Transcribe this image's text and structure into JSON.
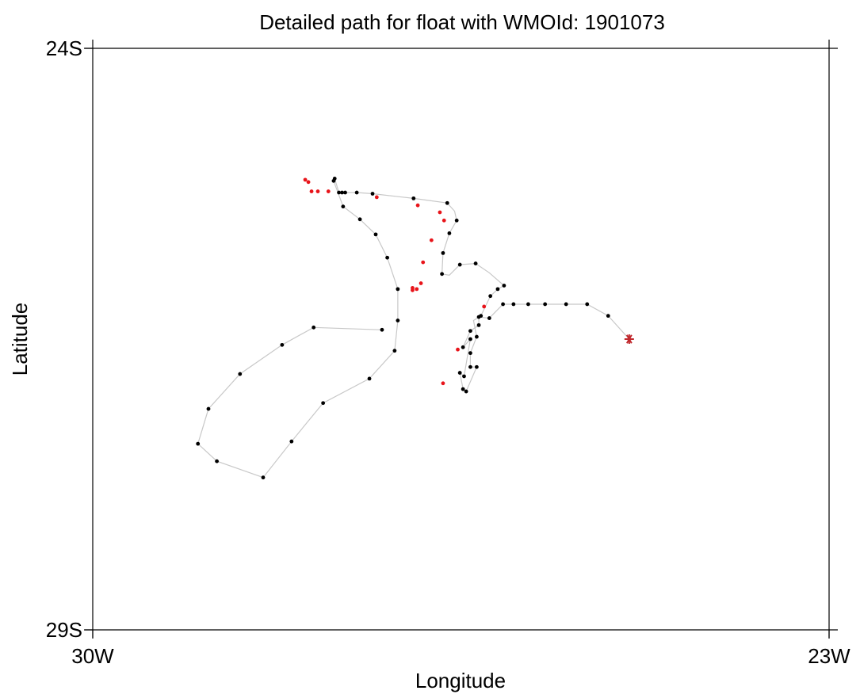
{
  "chart_data": {
    "type": "scatter",
    "title": "Detailed path for float with WMOId: 1901073",
    "xlabel": "Longitude",
    "ylabel": "Latitude",
    "xlim": [
      -30,
      -23
    ],
    "ylim": [
      -29,
      -24
    ],
    "x_ticks": [
      {
        "value": -30,
        "label": "30W"
      },
      {
        "value": -23,
        "label": "23W"
      }
    ],
    "y_ticks": [
      {
        "value": -24,
        "label": "24S"
      },
      {
        "value": -29,
        "label": "29S"
      }
    ],
    "grid": false,
    "legend": "none",
    "colors": {
      "path_line": "#c8c8c8",
      "black_point": "#000000",
      "red_point": "#e8141a",
      "latest_marker": "#c0282d"
    },
    "series": [
      {
        "type": "line",
        "points": [
          [
            -24.9,
            -26.5
          ],
          [
            -25.1,
            -26.3
          ],
          [
            -25.3,
            -26.2
          ],
          [
            -25.5,
            -26.2
          ],
          [
            -25.7,
            -26.2
          ],
          [
            -25.86,
            -26.2
          ],
          [
            -26.0,
            -26.2
          ],
          [
            -26.1,
            -26.2
          ],
          [
            -26.23,
            -26.32
          ],
          [
            -26.33,
            -26.31
          ],
          [
            -26.33,
            -26.38
          ],
          [
            -26.41,
            -26.43
          ],
          [
            -26.48,
            -26.57
          ],
          [
            -26.41,
            -26.5
          ],
          [
            -26.47,
            -26.82
          ],
          [
            -26.51,
            -26.79
          ],
          [
            -26.48,
            -26.93
          ],
          [
            -26.45,
            -26.95
          ],
          [
            -26.35,
            -26.74
          ],
          [
            -26.41,
            -26.74
          ],
          [
            -26.41,
            -26.62
          ],
          [
            -26.35,
            -26.48
          ],
          [
            -26.38,
            -26.34
          ],
          [
            -26.31,
            -26.3
          ],
          [
            -26.22,
            -26.13
          ],
          [
            -26.15,
            -26.07
          ],
          [
            -26.09,
            -26.04
          ],
          [
            -26.23,
            -25.93
          ],
          [
            -26.36,
            -25.85
          ],
          [
            -26.51,
            -25.86
          ],
          [
            -26.61,
            -25.95
          ],
          [
            -26.68,
            -25.94
          ],
          [
            -26.67,
            -25.76
          ],
          [
            -26.61,
            -25.59
          ],
          [
            -26.54,
            -25.48
          ],
          [
            -26.56,
            -25.4
          ],
          [
            -26.63,
            -25.33
          ],
          [
            -26.95,
            -25.29
          ],
          [
            -27.34,
            -25.25
          ],
          [
            -27.49,
            -25.24
          ],
          [
            -27.6,
            -25.24
          ],
          [
            -27.63,
            -25.24
          ],
          [
            -27.66,
            -25.24
          ],
          [
            -27.7,
            -25.12
          ],
          [
            -27.71,
            -25.14
          ],
          [
            -27.62,
            -25.36
          ],
          [
            -27.46,
            -25.47
          ],
          [
            -27.31,
            -25.6
          ],
          [
            -27.2,
            -25.8
          ],
          [
            -27.1,
            -26.07
          ],
          [
            -27.1,
            -26.34
          ],
          [
            -27.13,
            -26.6
          ],
          [
            -27.37,
            -26.84
          ],
          [
            -27.81,
            -27.05
          ],
          [
            -28.11,
            -27.38
          ],
          [
            -28.38,
            -27.69
          ],
          [
            -28.82,
            -27.55
          ],
          [
            -29.0,
            -27.4
          ],
          [
            -28.9,
            -27.1
          ],
          [
            -28.6,
            -26.8
          ],
          [
            -28.2,
            -26.55
          ],
          [
            -27.9,
            -26.4
          ],
          [
            -27.25,
            -26.42
          ]
        ]
      },
      {
        "type": "scatter",
        "color": "black",
        "points": [
          [
            -25.1,
            -26.3
          ],
          [
            -25.3,
            -26.2
          ],
          [
            -25.5,
            -26.2
          ],
          [
            -25.7,
            -26.2
          ],
          [
            -25.86,
            -26.2
          ],
          [
            -26.0,
            -26.2
          ],
          [
            -26.1,
            -26.2
          ],
          [
            -26.23,
            -26.32
          ],
          [
            -26.33,
            -26.31
          ],
          [
            -26.33,
            -26.38
          ],
          [
            -26.41,
            -26.43
          ],
          [
            -26.48,
            -26.57
          ],
          [
            -26.41,
            -26.5
          ],
          [
            -26.47,
            -26.82
          ],
          [
            -26.51,
            -26.79
          ],
          [
            -26.48,
            -26.93
          ],
          [
            -26.45,
            -26.95
          ],
          [
            -26.35,
            -26.74
          ],
          [
            -26.41,
            -26.74
          ],
          [
            -26.41,
            -26.62
          ],
          [
            -26.35,
            -26.48
          ],
          [
            -26.31,
            -26.3
          ],
          [
            -26.22,
            -26.13
          ],
          [
            -26.15,
            -26.07
          ],
          [
            -26.09,
            -26.04
          ],
          [
            -26.36,
            -25.85
          ],
          [
            -26.51,
            -25.86
          ],
          [
            -26.68,
            -25.94
          ],
          [
            -26.67,
            -25.76
          ],
          [
            -26.61,
            -25.59
          ],
          [
            -26.54,
            -25.48
          ],
          [
            -26.63,
            -25.33
          ],
          [
            -26.95,
            -25.29
          ],
          [
            -27.34,
            -25.25
          ],
          [
            -27.49,
            -25.24
          ],
          [
            -27.6,
            -25.24
          ],
          [
            -27.63,
            -25.24
          ],
          [
            -27.66,
            -25.24
          ],
          [
            -27.7,
            -25.12
          ],
          [
            -27.71,
            -25.14
          ],
          [
            -27.62,
            -25.36
          ],
          [
            -27.46,
            -25.47
          ],
          [
            -27.31,
            -25.6
          ],
          [
            -27.2,
            -25.8
          ],
          [
            -27.1,
            -26.07
          ],
          [
            -27.1,
            -26.34
          ],
          [
            -27.13,
            -26.6
          ],
          [
            -27.37,
            -26.84
          ],
          [
            -27.81,
            -27.05
          ],
          [
            -28.11,
            -27.38
          ],
          [
            -28.38,
            -27.69
          ],
          [
            -28.82,
            -27.55
          ],
          [
            -29.0,
            -27.4
          ],
          [
            -28.9,
            -27.1
          ],
          [
            -28.6,
            -26.8
          ],
          [
            -28.2,
            -26.55
          ],
          [
            -27.9,
            -26.4
          ],
          [
            -27.25,
            -26.42
          ]
        ]
      },
      {
        "type": "scatter",
        "color": "red",
        "points": [
          [
            -27.98,
            -25.13
          ],
          [
            -27.95,
            -25.15
          ],
          [
            -27.92,
            -25.23
          ],
          [
            -27.86,
            -25.23
          ],
          [
            -27.76,
            -25.23
          ],
          [
            -27.3,
            -25.28
          ],
          [
            -26.91,
            -25.35
          ],
          [
            -26.7,
            -25.41
          ],
          [
            -26.66,
            -25.48
          ],
          [
            -26.78,
            -25.65
          ],
          [
            -26.86,
            -25.84
          ],
          [
            -26.88,
            -26.02
          ],
          [
            -26.92,
            -26.07
          ],
          [
            -26.96,
            -26.06
          ],
          [
            -26.96,
            -26.08
          ],
          [
            -26.28,
            -26.22
          ],
          [
            -26.53,
            -26.59
          ],
          [
            -26.67,
            -26.88
          ]
        ]
      },
      {
        "type": "marker",
        "symbol": "asterisk",
        "color": "#c0282d",
        "points": [
          [
            -24.9,
            -26.5
          ]
        ]
      }
    ]
  }
}
